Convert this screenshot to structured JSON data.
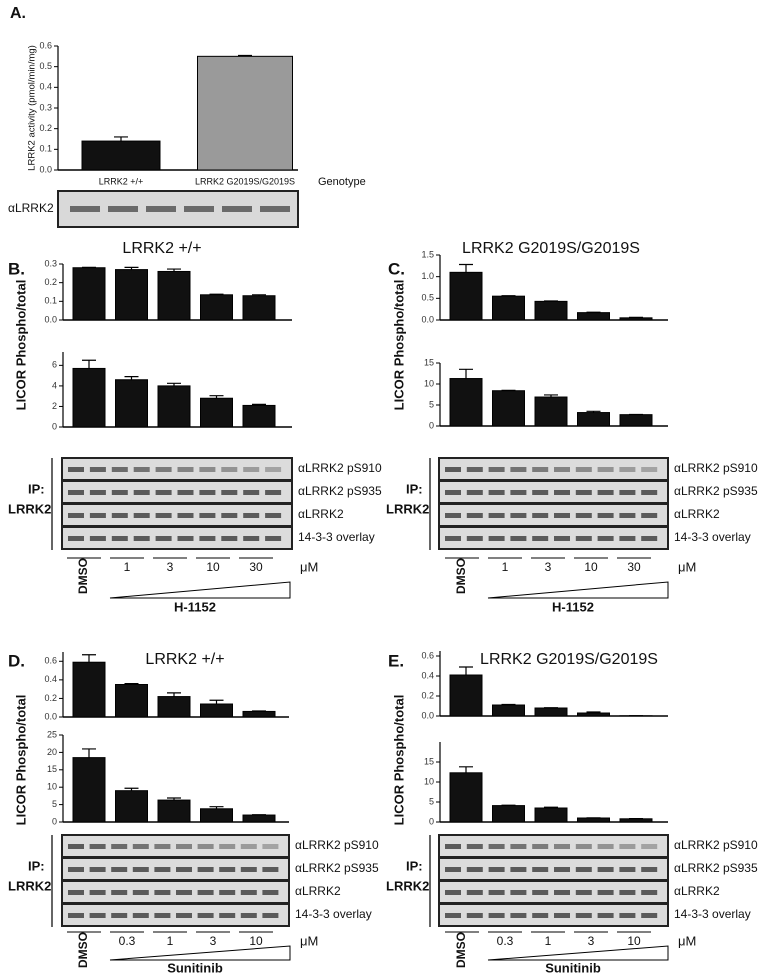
{
  "chart_data": [
    {
      "type": "bar",
      "ylabel": "LRRK2 activity (pmol/min/mg)",
      "xlabel": "Genotype",
      "categories": [
        "LRRK2 +/+",
        "LRRK2 G2019S/G2019S"
      ],
      "values": [
        0.14,
        0.55
      ],
      "errors": [
        0.02,
        0.004
      ],
      "colors": [
        "#111111",
        "#9a9a9a"
      ],
      "ylim": [
        0,
        0.6
      ],
      "yticks": [
        {
          "value": 0,
          "label": "0.0"
        },
        0.1,
        0.2,
        0.3,
        0.4,
        0.5,
        0.6
      ]
    },
    {
      "type": "bar",
      "values": [
        0.28,
        0.27,
        0.26,
        0.135,
        0.13
      ],
      "errors": [
        0.002,
        0.012,
        0.013,
        0.003,
        0.005
      ],
      "color": "#111111",
      "ylim": [
        0,
        0.3
      ],
      "yticks": [
        {
          "value": 0,
          "label": "0.0"
        },
        0.1,
        0.2,
        0.3
      ]
    },
    {
      "type": "bar",
      "values": [
        5.7,
        4.6,
        4.0,
        2.8,
        2.1
      ],
      "errors": [
        0.8,
        0.3,
        0.25,
        0.25,
        0.1
      ],
      "color": "#111111",
      "ylim": [
        0,
        7.3
      ],
      "yticks": [
        0,
        2,
        4,
        6
      ]
    },
    {
      "type": "bar",
      "values": [
        1.1,
        0.55,
        0.43,
        0.17,
        0.05
      ],
      "errors": [
        0.18,
        0.01,
        0.01,
        0.01,
        0.01
      ],
      "color": "#111111",
      "ylim": [
        0,
        1.5
      ],
      "yticks": [
        {
          "value": 0,
          "label": "0.0"
        },
        0.5,
        {
          "value": 1,
          "label": "1.0"
        },
        1.5
      ]
    },
    {
      "type": "bar",
      "values": [
        11.3,
        8.4,
        6.9,
        3.2,
        2.7
      ],
      "errors": [
        2.2,
        0.1,
        0.5,
        0.3,
        0.05
      ],
      "color": "#111111",
      "ylim": [
        0,
        15
      ],
      "yticks": [
        0,
        5,
        10,
        15
      ]
    },
    {
      "type": "bar",
      "values": [
        0.59,
        0.35,
        0.22,
        0.14,
        0.06
      ],
      "errors": [
        0.08,
        0.01,
        0.04,
        0.04,
        0.005
      ],
      "color": "#111111",
      "ylim": [
        0,
        0.7
      ],
      "yticks": [
        {
          "value": 0,
          "label": "0.0"
        },
        0.2,
        0.4,
        0.6
      ]
    },
    {
      "type": "bar",
      "values": [
        18.5,
        9,
        6.3,
        3.8,
        2.0
      ],
      "errors": [
        2.5,
        0.7,
        0.6,
        0.6,
        0.1
      ],
      "color": "#111111",
      "ylim": [
        0,
        25
      ],
      "yticks": [
        0,
        5,
        10,
        15,
        20,
        25
      ]
    },
    {
      "type": "bar",
      "values": [
        0.41,
        0.11,
        0.08,
        0.03,
        0.002
      ],
      "errors": [
        0.08,
        0.005,
        0.003,
        0.01,
        0.001
      ],
      "color": "#111111",
      "ylim": [
        0,
        0.65
      ],
      "yticks": [
        {
          "value": 0,
          "label": "0.0"
        },
        0.2,
        0.4,
        0.6
      ]
    },
    {
      "type": "bar",
      "values": [
        12.3,
        4.1,
        3.5,
        1.0,
        0.8
      ],
      "errors": [
        1.5,
        0.1,
        0.2,
        0.05,
        0.05
      ],
      "color": "#111111",
      "ylim": [
        0,
        20
      ],
      "yticks": [
        0,
        5,
        10,
        15
      ]
    }
  ],
  "panels": [
    {
      "label": "A.",
      "blot": [
        "αLRRK2"
      ]
    },
    {
      "label": "B.",
      "title": "LRRK2 +/+",
      "ylabel": "LICOR Phospho/total",
      "ip": [
        "IP:",
        "LRRK2"
      ],
      "blot": [
        "αLRRK2 pS910",
        "αLRRK2 pS935",
        "αLRRK2",
        "14-3-3 overlay"
      ],
      "doses": [
        "DMSO",
        "1",
        "3",
        "10",
        "30"
      ],
      "unit": "μM",
      "drug": "H-1152"
    },
    {
      "label": "C.",
      "title": "LRRK2 G2019S/G2019S",
      "ylabel": "LICOR Phospho/total",
      "ip": [
        "IP:",
        "LRRK2"
      ],
      "blot": [
        "αLRRK2 pS910",
        "αLRRK2 pS935",
        "αLRRK2",
        "14-3-3 overlay"
      ],
      "doses": [
        "DMSO",
        "1",
        "3",
        "10",
        "30"
      ],
      "unit": "μM",
      "drug": "H-1152"
    },
    {
      "label": "D.",
      "title": "LRRK2 +/+",
      "ylabel": "LICOR Phospho/total",
      "ip": [
        "IP:",
        "LRRK2"
      ],
      "blot": [
        "αLRRK2 pS910",
        "αLRRK2 pS935",
        "αLRRK2",
        "14-3-3 overlay"
      ],
      "doses": [
        "DMSO",
        "0.3",
        "1",
        "3",
        "10"
      ],
      "unit": "μM",
      "drug": "Sunitinib"
    },
    {
      "label": "E.",
      "title": "LRRK2 G2019S/G2019S",
      "ylabel": "LICOR Phospho/total",
      "ip": [
        "IP:",
        "LRRK2"
      ],
      "blot": [
        "αLRRK2 pS910",
        "αLRRK2 pS935",
        "αLRRK2",
        "14-3-3 overlay"
      ],
      "doses": [
        "DMSO",
        "0.3",
        "1",
        "3",
        "10"
      ],
      "unit": "μM",
      "drug": "Sunitinib"
    }
  ]
}
